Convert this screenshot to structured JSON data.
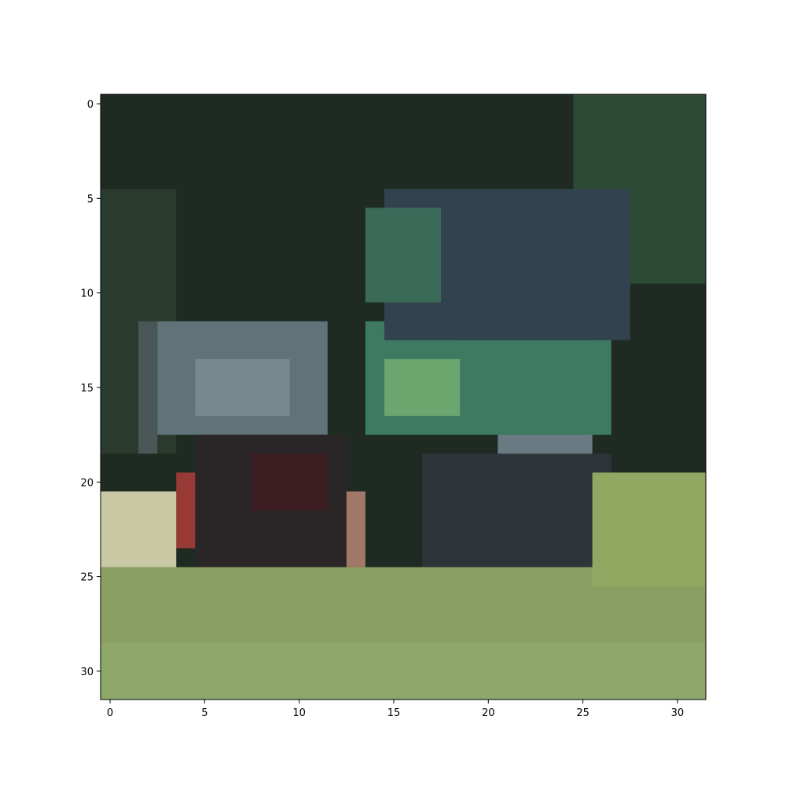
{
  "chart_data": {
    "type": "heatmap",
    "content": "32x32 pixel photo thumbnail rendered with imshow",
    "title": "",
    "xlabel": "",
    "ylabel": "",
    "grid": false,
    "colorbar": false,
    "x_ticks": [
      0,
      5,
      10,
      15,
      20,
      25,
      30
    ],
    "y_ticks": [
      0,
      5,
      10,
      15,
      20,
      25,
      30
    ],
    "x_tick_labels": [
      "0",
      "5",
      "10",
      "15",
      "20",
      "25",
      "30"
    ],
    "y_tick_labels": [
      "0",
      "5",
      "10",
      "15",
      "20",
      "25",
      "30"
    ],
    "xlim": [
      -0.5,
      31.5
    ],
    "ylim": [
      31.5,
      -0.5
    ],
    "image_rows": 32,
    "image_cols": 32,
    "color_regions": [
      {
        "region": "background-dark",
        "rows": [
          0,
          10
        ],
        "cols": [
          0,
          31
        ],
        "color": "#1e2a22"
      },
      {
        "region": "treeline-right",
        "rows": [
          0,
          9
        ],
        "cols": [
          25,
          31
        ],
        "color": "#2c4a34"
      },
      {
        "region": "green-tint-left",
        "rows": [
          5,
          18
        ],
        "cols": [
          0,
          3
        ],
        "color": "#2a3a2c"
      },
      {
        "region": "sign-board",
        "rows": [
          12,
          17
        ],
        "cols": [
          3,
          11
        ],
        "color": "#5f7378"
      },
      {
        "region": "sign-board-light",
        "rows": [
          14,
          16
        ],
        "cols": [
          5,
          9
        ],
        "color": "#78898d"
      },
      {
        "region": "sign-frame",
        "rows": [
          12,
          18
        ],
        "cols": [
          2,
          2
        ],
        "color": "#4a5658"
      },
      {
        "region": "rider-dark",
        "rows": [
          18,
          26
        ],
        "cols": [
          5,
          12
        ],
        "color": "#2a2628"
      },
      {
        "region": "red-jacket",
        "rows": [
          20,
          23
        ],
        "cols": [
          4,
          4
        ],
        "color": "#9a3a36"
      },
      {
        "region": "maroon",
        "rows": [
          19,
          21
        ],
        "cols": [
          8,
          11
        ],
        "color": "#3c1e22"
      },
      {
        "region": "green-tank",
        "rows": [
          12,
          17
        ],
        "cols": [
          14,
          26
        ],
        "color": "#3e7a62"
      },
      {
        "region": "green-bright",
        "rows": [
          14,
          16
        ],
        "cols": [
          15,
          18
        ],
        "color": "#6aa66e"
      },
      {
        "region": "blue-panel",
        "rows": [
          8,
          12
        ],
        "cols": [
          19,
          25
        ],
        "color": "#2c3e5e"
      },
      {
        "region": "engine-dark",
        "rows": [
          5,
          12
        ],
        "cols": [
          15,
          27
        ],
        "color": "#32424e"
      },
      {
        "region": "teal-upper",
        "rows": [
          6,
          10
        ],
        "cols": [
          14,
          17
        ],
        "color": "#3a6a58"
      },
      {
        "region": "silver-parts",
        "rows": [
          18,
          19
        ],
        "cols": [
          21,
          25
        ],
        "color": "#6a7a82"
      },
      {
        "region": "engine-lower",
        "rows": [
          19,
          24
        ],
        "cols": [
          17,
          26
        ],
        "color": "#2e3438"
      },
      {
        "region": "skin-arm",
        "rows": [
          21,
          25
        ],
        "cols": [
          13,
          13
        ],
        "color": "#a07868"
      },
      {
        "region": "wheel-shadow",
        "rows": [
          25,
          28
        ],
        "cols": [
          13,
          25
        ],
        "color": "#1e221c"
      },
      {
        "region": "grass-lower",
        "rows": [
          25,
          31
        ],
        "cols": [
          0,
          31
        ],
        "color": "#8aa062"
      },
      {
        "region": "grass-light-left",
        "rows": [
          21,
          24
        ],
        "cols": [
          0,
          3
        ],
        "color": "#c8c8a4"
      },
      {
        "region": "grass-right",
        "rows": [
          20,
          25
        ],
        "cols": [
          26,
          31
        ],
        "color": "#90a862"
      },
      {
        "region": "grass-bottom",
        "rows": [
          29,
          31
        ],
        "cols": [
          0,
          31
        ],
        "color": "#8ea66a"
      }
    ]
  }
}
